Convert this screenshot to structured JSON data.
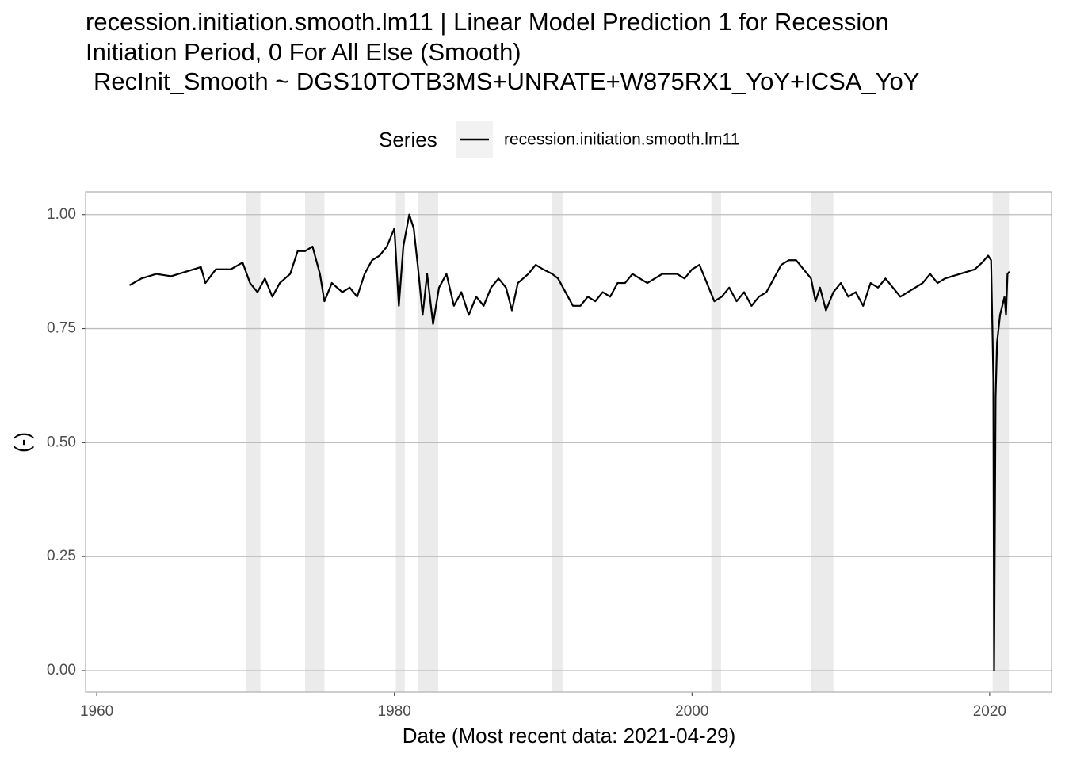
{
  "chart_data": {
    "type": "line",
    "title": [
      "recession.initiation.smooth.lm11 | Linear Model Prediction 1 for Recession",
      "Initiation Period, 0 For All Else (Smooth)"
    ],
    "subtitle": "RecInit_Smooth ~  DGS10TOTB3MS+UNRATE+W875RX1_YoY+ICSA_YoY",
    "legend_title": "Series",
    "x_label": "Date (Most recent data: 2021-04-29)",
    "y_label": "(-)",
    "xlim": [
      1959.25,
      2024.16
    ],
    "ylim": [
      -0.047,
      1.05
    ],
    "xticks": [
      1960,
      1980,
      2000,
      2020
    ],
    "yticks": [
      {
        "value": 0,
        "label": "0.00"
      },
      {
        "value": 0.25,
        "label": "0.25"
      },
      {
        "value": 0.5,
        "label": "0.50"
      },
      {
        "value": 0.75,
        "label": "0.75"
      },
      {
        "value": 1,
        "label": "1.00"
      }
    ],
    "grid": true,
    "recession_color": "#ebebeb",
    "recessions": [
      [
        1970.06,
        1971.0
      ],
      [
        1974.0,
        1975.3
      ],
      [
        1980.1,
        1980.7
      ],
      [
        1981.6,
        1982.95
      ],
      [
        1990.6,
        1991.3
      ],
      [
        2001.3,
        2001.95
      ],
      [
        2008.0,
        2009.5
      ],
      [
        2020.2,
        2021.3
      ]
    ],
    "x": [
      1962.2,
      1963,
      1964,
      1965,
      1966,
      1967,
      1967.3,
      1968,
      1969,
      1969.8,
      1970.3,
      1970.8,
      1971.3,
      1971.8,
      1972.3,
      1973,
      1973.5,
      1974,
      1974.5,
      1975,
      1975.3,
      1975.8,
      1976.5,
      1977,
      1977.5,
      1978,
      1978.5,
      1979,
      1979.5,
      1980,
      1980.3,
      1980.6,
      1981.0,
      1981.3,
      1981.6,
      1981.9,
      1982.2,
      1982.6,
      1983,
      1983.5,
      1984,
      1984.5,
      1985,
      1985.5,
      1986,
      1986.5,
      1987,
      1987.5,
      1987.9,
      1988.3,
      1989,
      1989.5,
      1990,
      1990.6,
      1991,
      1991.5,
      1992,
      1992.5,
      1993,
      1993.5,
      1994,
      1994.5,
      1995,
      1995.5,
      1996,
      1996.5,
      1997,
      1997.5,
      1998,
      1999,
      1999.5,
      2000,
      2000.5,
      2001,
      2001.5,
      2002,
      2002.5,
      2003,
      2003.5,
      2004,
      2004.5,
      2005,
      2005.5,
      2006,
      2006.5,
      2007,
      2007.5,
      2008,
      2008.3,
      2008.6,
      2009,
      2009.5,
      2010,
      2010.5,
      2011,
      2011.5,
      2012,
      2012.5,
      2013,
      2013.5,
      2014,
      2014.5,
      2015,
      2015.5,
      2016,
      2016.5,
      2017,
      2018,
      2019,
      2019.5,
      2019.9,
      2020.1,
      2020.25,
      2020.3,
      2020.4,
      2020.5,
      2020.7,
      2021.0,
      2021.1,
      2021.2,
      2021.33
    ],
    "series": [
      {
        "name": "recession.initiation.smooth.lm11",
        "color": "#000000",
        "values": [
          0.845,
          0.86,
          0.87,
          0.865,
          0.875,
          0.885,
          0.85,
          0.88,
          0.88,
          0.895,
          0.85,
          0.83,
          0.86,
          0.82,
          0.85,
          0.87,
          0.92,
          0.92,
          0.93,
          0.87,
          0.81,
          0.85,
          0.83,
          0.84,
          0.82,
          0.87,
          0.9,
          0.91,
          0.93,
          0.97,
          0.8,
          0.93,
          1.0,
          0.97,
          0.88,
          0.78,
          0.87,
          0.76,
          0.84,
          0.87,
          0.8,
          0.83,
          0.78,
          0.82,
          0.8,
          0.84,
          0.86,
          0.84,
          0.79,
          0.85,
          0.87,
          0.89,
          0.88,
          0.87,
          0.86,
          0.83,
          0.8,
          0.8,
          0.82,
          0.81,
          0.83,
          0.82,
          0.85,
          0.85,
          0.87,
          0.86,
          0.85,
          0.86,
          0.87,
          0.87,
          0.86,
          0.88,
          0.89,
          0.85,
          0.81,
          0.82,
          0.84,
          0.81,
          0.83,
          0.8,
          0.82,
          0.83,
          0.86,
          0.89,
          0.9,
          0.9,
          0.88,
          0.86,
          0.81,
          0.84,
          0.79,
          0.83,
          0.85,
          0.82,
          0.83,
          0.8,
          0.85,
          0.84,
          0.86,
          0.84,
          0.82,
          0.83,
          0.84,
          0.85,
          0.87,
          0.85,
          0.86,
          0.87,
          0.88,
          0.895,
          0.91,
          0.9,
          0.64,
          0.0,
          0.6,
          0.72,
          0.78,
          0.82,
          0.78,
          0.87,
          0.875
        ]
      }
    ]
  }
}
